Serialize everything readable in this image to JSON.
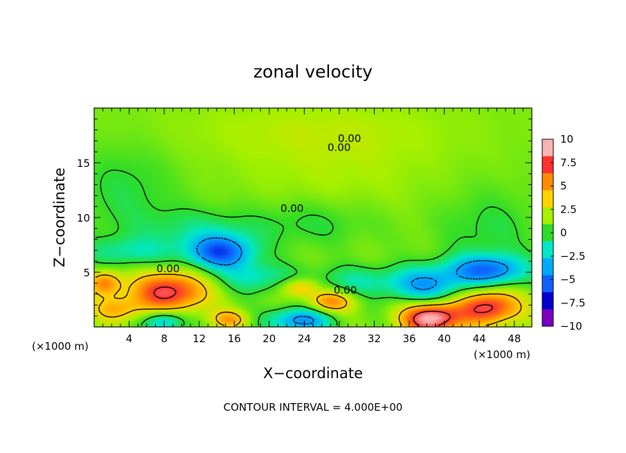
{
  "chart_data": {
    "type": "heatmap",
    "title": "zonal velocity",
    "xlabel": "X−coordinate",
    "ylabel": "Z−coordinate",
    "x_unit": "(×1000 m)",
    "xlim": [
      0,
      50
    ],
    "ylim": [
      0,
      20
    ],
    "x_ticks": [
      4,
      8,
      12,
      16,
      20,
      24,
      28,
      32,
      36,
      40,
      44,
      48
    ],
    "y_ticks": [
      5,
      10,
      15
    ],
    "colorbar": {
      "range": [
        -10,
        10
      ],
      "ticks": [
        10,
        7.5,
        5,
        2.5,
        0,
        -2.5,
        -5,
        -7.5,
        -10
      ],
      "tick_labels": [
        "10",
        "7.5",
        "5",
        "2.5",
        "0",
        "−2.5",
        "−5",
        "−7.5",
        "−10"
      ],
      "colors": [
        "#f9b3b3",
        "#ff3030",
        "#ff8c00",
        "#ffd400",
        "#a6f000",
        "#2edc28",
        "#00e8c8",
        "#00aaff",
        "#1060ff",
        "#0000d0",
        "#7a00c0"
      ]
    },
    "contour_interval_text": "CONTOUR INTERVAL = 4.000E+00",
    "contour_labels": [
      "0.00",
      "0.00",
      "0.00",
      "0.00",
      "0.00"
    ],
    "features": [
      {
        "x": 14.5,
        "z": 6.8,
        "value": -7,
        "sx": 2.6,
        "sz": 1.1
      },
      {
        "x": 8.5,
        "z": 3.2,
        "value": 7.5,
        "sx": 3.0,
        "sz": 1.3
      },
      {
        "x": 1.2,
        "z": 4.0,
        "value": 5,
        "sx": 1.3,
        "sz": 0.8
      },
      {
        "x": 38.5,
        "z": 0.8,
        "value": 9.5,
        "sx": 2.3,
        "sz": 1.0
      },
      {
        "x": 45.0,
        "z": 1.8,
        "value": 7.5,
        "sx": 2.5,
        "sz": 1.1
      },
      {
        "x": 45.0,
        "z": 5.2,
        "value": -6.5,
        "sx": 3.2,
        "sz": 1.0
      },
      {
        "x": 38.0,
        "z": 3.8,
        "value": -5,
        "sx": 3.0,
        "sz": 1.2
      },
      {
        "x": 23.5,
        "z": 0.6,
        "value": -6,
        "sx": 2.5,
        "sz": 0.8
      },
      {
        "x": 8.0,
        "z": 0.5,
        "value": -5,
        "sx": 1.6,
        "sz": 0.7
      },
      {
        "x": 27.0,
        "z": 2.3,
        "value": 5,
        "sx": 1.8,
        "sz": 0.7
      },
      {
        "x": 23.5,
        "z": 3.6,
        "value": 4,
        "sx": 1.5,
        "sz": 0.6
      },
      {
        "x": 15.5,
        "z": 0.7,
        "value": 4,
        "sx": 1.5,
        "sz": 0.6
      },
      {
        "x": 2.5,
        "z": 1.6,
        "value": 3.5,
        "sx": 2.0,
        "sz": 0.8
      },
      {
        "x": 18.5,
        "z": 4.5,
        "value": -3,
        "sx": 3.0,
        "sz": 1.0
      },
      {
        "x": 30.0,
        "z": 4.2,
        "value": -2.5,
        "sx": 4.0,
        "sz": 1.0
      },
      {
        "x": 4.0,
        "z": 6.8,
        "value": -2.5,
        "sx": 4.0,
        "sz": 1.0
      },
      {
        "x": 12.0,
        "z": 8.8,
        "value": -2,
        "sx": 5.0,
        "sz": 1.5
      },
      {
        "x": 3.5,
        "z": 12.5,
        "value": -1.5,
        "sx": 4.0,
        "sz": 3.0
      },
      {
        "x": 25.0,
        "z": 9.5,
        "value": -1.5,
        "sx": 5.0,
        "sz": 1.5
      },
      {
        "x": 45.0,
        "z": 9.0,
        "value": -1.5,
        "sx": 4.0,
        "sz": 2.5
      },
      {
        "x": 25.0,
        "z": 18.0,
        "value": 1,
        "sx": 12.0,
        "sz": 2.0
      },
      {
        "x": 28.0,
        "z": 14.0,
        "value": 0.8,
        "sx": 8.0,
        "sz": 3.0
      }
    ]
  }
}
